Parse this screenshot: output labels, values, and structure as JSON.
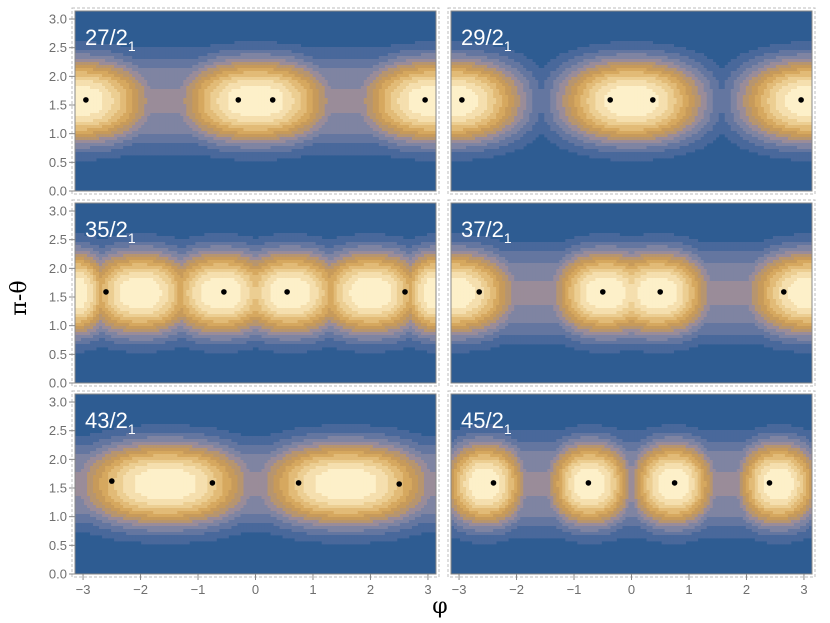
{
  "figure": {
    "xlabel": "φ",
    "ylabel": "π-θ",
    "colors": {
      "background": "#2e5c92",
      "level_fills": [
        "#2e5c92",
        "#49689b",
        "#6476a0",
        "#7f84a2",
        "#9a8c99",
        "#b7956f",
        "#c79a5a",
        "#d6a85f",
        "#e2bb77",
        "#ecce92",
        "#f5dfae",
        "#fdf0c9"
      ],
      "contour_line": "#4a4035",
      "frame": "#888888",
      "tick_text": "#6f6f6f"
    }
  },
  "chart_data": [
    {
      "type": "contour",
      "label_main": "27/2",
      "label_sub": "1",
      "xlim": [
        -3.14,
        3.14
      ],
      "ylim": [
        0,
        3.14
      ],
      "xticks": [
        -3,
        -2,
        -1,
        0,
        1,
        2,
        3
      ],
      "yticks": [
        0.0,
        0.5,
        1.0,
        1.5,
        2.0,
        2.5,
        3.0
      ],
      "grid": false,
      "maxima": [
        [
          -2.95,
          1.59
        ],
        [
          -0.3,
          1.59
        ],
        [
          0.3,
          1.59
        ],
        [
          2.95,
          1.59
        ]
      ],
      "lobes": [
        {
          "cx": -3.14,
          "w": 1.3
        },
        {
          "cx": 0,
          "w": 1.3
        },
        {
          "cx": 3.14,
          "w": 1.3
        }
      ],
      "band": {
        "cy": 1.57,
        "hw": 0.82
      }
    },
    {
      "type": "contour",
      "label_main": "29/2",
      "label_sub": "1",
      "xlim": [
        -3.14,
        3.14
      ],
      "ylim": [
        0,
        3.14
      ],
      "xticks": [
        -3,
        -2,
        -1,
        0,
        1,
        2,
        3
      ],
      "yticks": [
        0.0,
        0.5,
        1.0,
        1.5,
        2.0,
        2.5,
        3.0
      ],
      "grid": false,
      "maxima": [
        [
          -2.95,
          1.59
        ],
        [
          -0.37,
          1.59
        ],
        [
          0.37,
          1.59
        ],
        [
          2.95,
          1.59
        ]
      ],
      "lobes": [
        {
          "cx": -3.14,
          "w": 1.25
        },
        {
          "cx": 0,
          "w": 1.25
        },
        {
          "cx": 3.14,
          "w": 1.25
        }
      ],
      "band": null
    },
    {
      "type": "contour",
      "label_main": "35/2",
      "label_sub": "1",
      "xlim": [
        -3.14,
        3.14
      ],
      "ylim": [
        0,
        3.14
      ],
      "xticks": [
        -3,
        -2,
        -1,
        0,
        1,
        2,
        3
      ],
      "yticks": [
        0.0,
        0.5,
        1.0,
        1.5,
        2.0,
        2.5,
        3.0
      ],
      "grid": false,
      "maxima": [
        [
          -2.6,
          1.59
        ],
        [
          -0.55,
          1.59
        ],
        [
          0.55,
          1.59
        ],
        [
          2.6,
          1.59
        ]
      ],
      "lobes": [
        {
          "cx": -2.0,
          "w": 0.95
        },
        {
          "cx": -0.6,
          "w": 0.95
        },
        {
          "cx": 0.6,
          "w": 0.95
        },
        {
          "cx": 2.0,
          "w": 0.95
        },
        {
          "cx": -3.14,
          "w": 0.6
        },
        {
          "cx": 3.14,
          "w": 0.6
        }
      ],
      "band": {
        "cy": 1.57,
        "hw": 0.8
      }
    },
    {
      "type": "contour",
      "label_main": "37/2",
      "label_sub": "1",
      "xlim": [
        -3.14,
        3.14
      ],
      "ylim": [
        0,
        3.14
      ],
      "xticks": [
        -3,
        -2,
        -1,
        0,
        1,
        2,
        3
      ],
      "yticks": [
        0.0,
        0.5,
        1.0,
        1.5,
        2.0,
        2.5,
        3.0
      ],
      "grid": false,
      "maxima": [
        [
          -2.65,
          1.59
        ],
        [
          -0.5,
          1.59
        ],
        [
          0.5,
          1.59
        ],
        [
          2.65,
          1.59
        ]
      ],
      "lobes": [
        {
          "cx": -3.14,
          "w": 1.1
        },
        {
          "cx": -0.45,
          "w": 0.9
        },
        {
          "cx": 0.45,
          "w": 0.9
        },
        {
          "cx": 3.14,
          "w": 1.1
        }
      ],
      "band": {
        "cy": 1.57,
        "hw": 0.8
      }
    },
    {
      "type": "contour",
      "label_main": "43/2",
      "label_sub": "1",
      "xlim": [
        -3.14,
        3.14
      ],
      "ylim": [
        0,
        3.14
      ],
      "xticks": [
        -3,
        -2,
        -1,
        0,
        1,
        2,
        3
      ],
      "yticks": [
        0.0,
        0.5,
        1.0,
        1.5,
        2.0,
        2.5,
        3.0
      ],
      "grid": false,
      "maxima": [
        [
          -2.5,
          1.62
        ],
        [
          -0.75,
          1.59
        ],
        [
          0.75,
          1.59
        ],
        [
          2.5,
          1.57
        ]
      ],
      "lobes": [
        {
          "cx": -1.57,
          "w": 1.45
        },
        {
          "cx": 1.57,
          "w": 1.45
        }
      ],
      "band": {
        "cy": 1.57,
        "hw": 0.76
      }
    },
    {
      "type": "contour",
      "label_main": "45/2",
      "label_sub": "1",
      "xlim": [
        -3.14,
        3.14
      ],
      "ylim": [
        0,
        3.14
      ],
      "xticks": [
        -3,
        -2,
        -1,
        0,
        1,
        2,
        3
      ],
      "yticks": [
        0.0,
        0.5,
        1.0,
        1.5,
        2.0,
        2.5,
        3.0
      ],
      "grid": false,
      "maxima": [
        [
          -2.4,
          1.59
        ],
        [
          -0.75,
          1.59
        ],
        [
          0.75,
          1.59
        ],
        [
          2.4,
          1.59
        ]
      ],
      "lobes": [
        {
          "cx": -2.55,
          "w": 0.7
        },
        {
          "cx": -0.72,
          "w": 0.72
        },
        {
          "cx": 0.72,
          "w": 0.72
        },
        {
          "cx": 2.55,
          "w": 0.7
        }
      ],
      "band": {
        "cy": 1.57,
        "hw": 0.82
      }
    }
  ]
}
